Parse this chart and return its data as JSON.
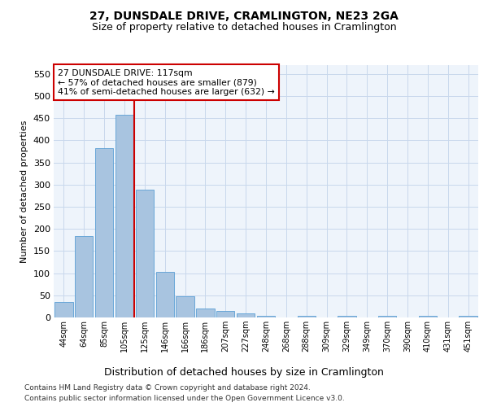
{
  "title": "27, DUNSDALE DRIVE, CRAMLINGTON, NE23 2GA",
  "subtitle": "Size of property relative to detached houses in Cramlington",
  "xlabel": "Distribution of detached houses by size in Cramlington",
  "ylabel": "Number of detached properties",
  "footnote1": "Contains HM Land Registry data © Crown copyright and database right 2024.",
  "footnote2": "Contains public sector information licensed under the Open Government Licence v3.0.",
  "categories": [
    "44sqm",
    "64sqm",
    "85sqm",
    "105sqm",
    "125sqm",
    "146sqm",
    "166sqm",
    "186sqm",
    "207sqm",
    "227sqm",
    "248sqm",
    "268sqm",
    "288sqm",
    "309sqm",
    "329sqm",
    "349sqm",
    "370sqm",
    "390sqm",
    "410sqm",
    "431sqm",
    "451sqm"
  ],
  "values": [
    35,
    183,
    383,
    457,
    288,
    103,
    47,
    20,
    15,
    10,
    3,
    0,
    3,
    0,
    3,
    0,
    3,
    0,
    3,
    0,
    3
  ],
  "bar_color": "#a8c4e0",
  "bar_edge_color": "#5a9fd4",
  "grid_color": "#c8d8ec",
  "background_color": "#eef4fb",
  "vline_color": "#cc0000",
  "annotation_text": "27 DUNSDALE DRIVE: 117sqm\n← 57% of detached houses are smaller (879)\n41% of semi-detached houses are larger (632) →",
  "annotation_box_color": "#ffffff",
  "annotation_box_edge": "#cc0000",
  "ylim": [
    0,
    570
  ],
  "yticks": [
    0,
    50,
    100,
    150,
    200,
    250,
    300,
    350,
    400,
    450,
    500,
    550
  ]
}
